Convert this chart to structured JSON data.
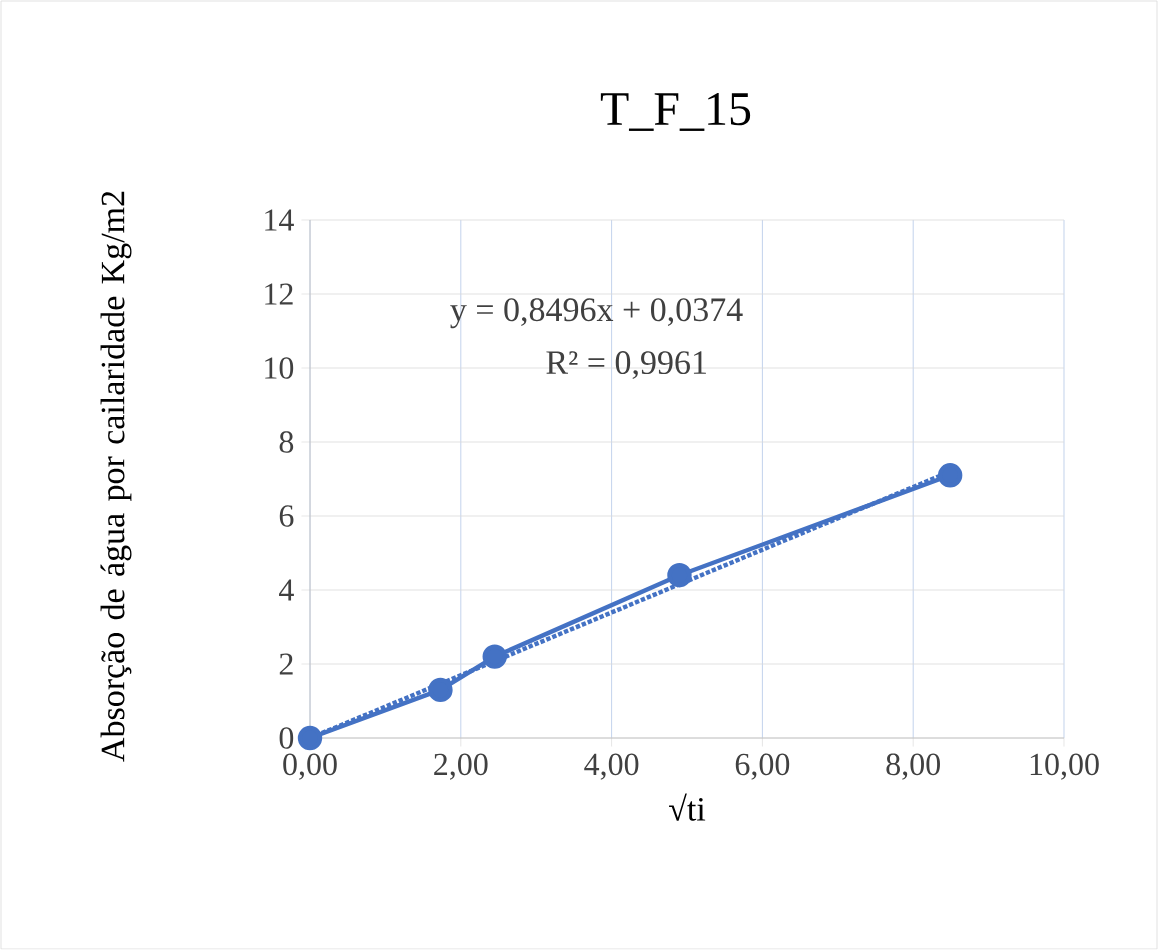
{
  "chart_data": {
    "type": "line",
    "title": "T_F_15",
    "xlabel": "√ti",
    "ylabel": "Absorção de água por cailaridade Kg/m2",
    "x": [
      0,
      1.73,
      2.45,
      4.9,
      8.49
    ],
    "series": [
      {
        "color": "#4472c4",
        "values": [
          0,
          1.3,
          2.2,
          4.4,
          7.1
        ],
        "marker": "circle",
        "line_style": "solid"
      },
      {
        "type": "line",
        "x": [
          0,
          8.49
        ],
        "values": [
          0,
          7.2
        ],
        "color": "#4472c4",
        "marker": "none",
        "line_style": "dotted"
      }
    ],
    "xlim": [
      0,
      10
    ],
    "ylim": [
      0,
      14
    ],
    "xticks": [
      {
        "value": 0,
        "label": "0,00"
      },
      {
        "value": 2,
        "label": "2,00"
      },
      {
        "value": 4,
        "label": "4,00"
      },
      {
        "value": 6,
        "label": "6,00"
      },
      {
        "value": 8,
        "label": "8,00"
      },
      {
        "value": 10,
        "label": "10,00"
      }
    ],
    "yticks": [
      0,
      2,
      4,
      6,
      8,
      10,
      12,
      14
    ],
    "grid": true,
    "annotations": [
      "y = 0,8496x + 0,0374",
      "R² = 0,9961"
    ]
  }
}
